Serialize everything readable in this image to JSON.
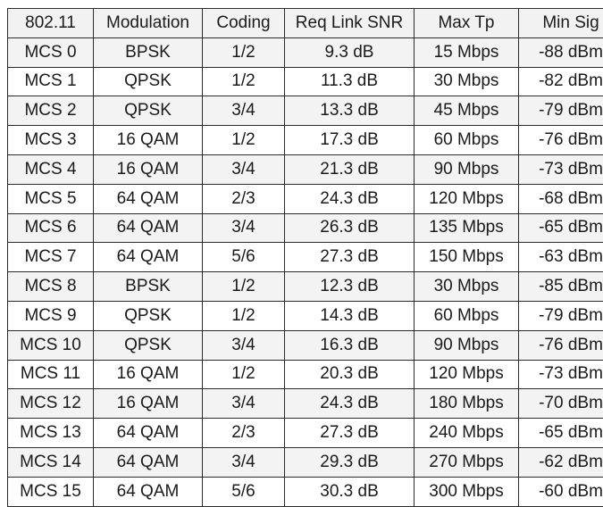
{
  "table": {
    "headers": [
      "802.11",
      "Modulation",
      "Coding",
      "Req Link SNR",
      "Max Tp",
      "Min Sig"
    ],
    "rows": [
      [
        "MCS 0",
        "BPSK",
        "1/2",
        "9.3 dB",
        "15 Mbps",
        "-88 dBm"
      ],
      [
        "MCS 1",
        "QPSK",
        "1/2",
        "11.3 dB",
        "30 Mbps",
        "-82 dBm"
      ],
      [
        "MCS 2",
        "QPSK",
        "3/4",
        "13.3 dB",
        "45 Mbps",
        "-79 dBm"
      ],
      [
        "MCS 3",
        "16 QAM",
        "1/2",
        "17.3 dB",
        "60 Mbps",
        "-76 dBm"
      ],
      [
        "MCS 4",
        "16 QAM",
        "3/4",
        "21.3 dB",
        "90 Mbps",
        "-73 dBm"
      ],
      [
        "MCS 5",
        "64 QAM",
        "2/3",
        "24.3 dB",
        "120 Mbps",
        "-68 dBm"
      ],
      [
        "MCS 6",
        "64 QAM",
        "3/4",
        "26.3 dB",
        "135 Mbps",
        "-65 dBm"
      ],
      [
        "MCS 7",
        "64 QAM",
        "5/6",
        "27.3 dB",
        "150 Mbps",
        "-63 dBm"
      ],
      [
        "MCS 8",
        "BPSK",
        "1/2",
        "12.3 dB",
        "30 Mbps",
        "-85 dBm"
      ],
      [
        "MCS 9",
        "QPSK",
        "1/2",
        "14.3 dB",
        "60 Mbps",
        "-79 dBm"
      ],
      [
        "MCS 10",
        "QPSK",
        "3/4",
        "16.3 dB",
        "90 Mbps",
        "-76 dBm"
      ],
      [
        "MCS 11",
        "16 QAM",
        "1/2",
        "20.3 dB",
        "120 Mbps",
        "-73 dBm"
      ],
      [
        "MCS 12",
        "16 QAM",
        "3/4",
        "24.3 dB",
        "180 Mbps",
        "-70 dBm"
      ],
      [
        "MCS 13",
        "64 QAM",
        "2/3",
        "27.3 dB",
        "240 Mbps",
        "-65 dBm"
      ],
      [
        "MCS 14",
        "64 QAM",
        "3/4",
        "29.3 dB",
        "270 Mbps",
        "-62 dBm"
      ],
      [
        "MCS 15",
        "64 QAM",
        "5/6",
        "30.3 dB",
        "300 Mbps",
        "-60 dBm"
      ]
    ]
  }
}
